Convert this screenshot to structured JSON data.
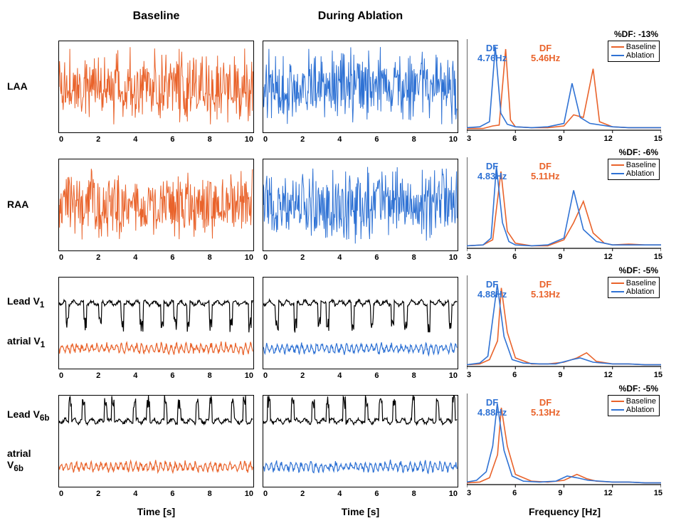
{
  "headers": {
    "col1": "Baseline",
    "col2": "During Ablation"
  },
  "axis_labels": {
    "time": "Time [s]",
    "freq": "Frequency [Hz]"
  },
  "colors": {
    "baseline": "#e9632b",
    "ablation": "#2f72d4",
    "ecg": "#000000",
    "box": "#000000",
    "bg": "#ffffff"
  },
  "legend": {
    "baseline": "Baseline",
    "ablation": "Ablation"
  },
  "time_panel": {
    "xlim": [
      0,
      10
    ],
    "xticks": [
      0,
      2,
      4,
      6,
      8,
      10
    ]
  },
  "freq_panel": {
    "xlim": [
      3,
      15
    ],
    "xticks": [
      3,
      6,
      9,
      12,
      15
    ]
  },
  "rows": [
    {
      "row_label": "LAA",
      "type": "egm",
      "pct_df": "%DF: -13%",
      "df_ablation": {
        "label": "DF",
        "hz": "4.76Hz"
      },
      "df_baseline": {
        "label": "DF",
        "hz": "5.46Hz"
      },
      "spectrum": {
        "baseline": [
          [
            3,
            2
          ],
          [
            4,
            2
          ],
          [
            4.6,
            5
          ],
          [
            5.0,
            6
          ],
          [
            5.4,
            95
          ],
          [
            5.7,
            12
          ],
          [
            6,
            4
          ],
          [
            7,
            3
          ],
          [
            8,
            3
          ],
          [
            9,
            5
          ],
          [
            9.6,
            18
          ],
          [
            10.2,
            15
          ],
          [
            10.8,
            72
          ],
          [
            11.2,
            10
          ],
          [
            12,
            4
          ],
          [
            13,
            3
          ],
          [
            14,
            3
          ],
          [
            15,
            3
          ]
        ],
        "ablation": [
          [
            3,
            3
          ],
          [
            3.8,
            4
          ],
          [
            4.4,
            10
          ],
          [
            4.76,
            98
          ],
          [
            5.1,
            20
          ],
          [
            5.5,
            7
          ],
          [
            6,
            4
          ],
          [
            7,
            3
          ],
          [
            8,
            4
          ],
          [
            9,
            8
          ],
          [
            9.5,
            55
          ],
          [
            10,
            15
          ],
          [
            10.6,
            8
          ],
          [
            12,
            4
          ],
          [
            13,
            3
          ],
          [
            14,
            3
          ],
          [
            15,
            3
          ]
        ]
      }
    },
    {
      "row_label": "RAA",
      "type": "egm",
      "pct_df": "%DF: -6%",
      "df_ablation": {
        "label": "DF",
        "hz": "4.83Hz"
      },
      "df_baseline": {
        "label": "DF",
        "hz": "5.11Hz"
      },
      "spectrum": {
        "baseline": [
          [
            3,
            3
          ],
          [
            4,
            4
          ],
          [
            4.6,
            10
          ],
          [
            5.11,
            90
          ],
          [
            5.5,
            20
          ],
          [
            6,
            6
          ],
          [
            7,
            3
          ],
          [
            8,
            3
          ],
          [
            9,
            10
          ],
          [
            9.6,
            30
          ],
          [
            10.2,
            55
          ],
          [
            10.8,
            18
          ],
          [
            11.5,
            6
          ],
          [
            12,
            4
          ],
          [
            13,
            5
          ],
          [
            14,
            4
          ],
          [
            15,
            4
          ]
        ],
        "ablation": [
          [
            3,
            3
          ],
          [
            4,
            4
          ],
          [
            4.5,
            12
          ],
          [
            4.83,
            96
          ],
          [
            5.2,
            30
          ],
          [
            5.6,
            8
          ],
          [
            6,
            4
          ],
          [
            7,
            3
          ],
          [
            8,
            4
          ],
          [
            9,
            12
          ],
          [
            9.6,
            68
          ],
          [
            10.2,
            22
          ],
          [
            11,
            8
          ],
          [
            12,
            4
          ],
          [
            13,
            4
          ],
          [
            14,
            4
          ],
          [
            15,
            4
          ]
        ]
      }
    },
    {
      "row_label_top": "Lead V<sub>1</sub>",
      "row_label_bottom": "atrial V<sub>1</sub>",
      "type": "ecg",
      "pct_df": "%DF: -5%",
      "df_ablation": {
        "label": "DF",
        "hz": "4.88Hz"
      },
      "df_baseline": {
        "label": "DF",
        "hz": "5.13Hz"
      },
      "spectrum": {
        "baseline": [
          [
            3,
            2
          ],
          [
            3.8,
            3
          ],
          [
            4.4,
            8
          ],
          [
            4.9,
            30
          ],
          [
            5.13,
            92
          ],
          [
            5.5,
            40
          ],
          [
            6,
            10
          ],
          [
            7,
            3
          ],
          [
            8,
            3
          ],
          [
            9,
            5
          ],
          [
            9.8,
            10
          ],
          [
            10.4,
            16
          ],
          [
            11,
            6
          ],
          [
            12,
            3
          ],
          [
            13,
            3
          ],
          [
            14,
            2
          ],
          [
            15,
            2
          ]
        ],
        "ablation": [
          [
            3,
            2
          ],
          [
            3.8,
            4
          ],
          [
            4.3,
            12
          ],
          [
            4.88,
            96
          ],
          [
            5.3,
            35
          ],
          [
            5.8,
            8
          ],
          [
            6.5,
            4
          ],
          [
            7.5,
            3
          ],
          [
            8.5,
            3
          ],
          [
            9.5,
            8
          ],
          [
            10,
            10
          ],
          [
            10.8,
            5
          ],
          [
            12,
            3
          ],
          [
            13,
            3
          ],
          [
            14,
            2
          ],
          [
            15,
            2
          ]
        ]
      }
    },
    {
      "row_label_top": "Lead V<sub>6b</sub>",
      "row_label_bottom": "atrial V<sub>6b</sub>",
      "type": "ecg",
      "pct_df": "%DF: -5%",
      "df_ablation": {
        "label": "DF",
        "hz": "4.88Hz"
      },
      "df_baseline": {
        "label": "DF",
        "hz": "5.13Hz"
      },
      "spectrum": {
        "baseline": [
          [
            3,
            2
          ],
          [
            3.8,
            3
          ],
          [
            4.4,
            8
          ],
          [
            4.9,
            35
          ],
          [
            5.13,
            90
          ],
          [
            5.5,
            45
          ],
          [
            6,
            12
          ],
          [
            7,
            4
          ],
          [
            8,
            3
          ],
          [
            9,
            5
          ],
          [
            9.8,
            12
          ],
          [
            10.4,
            7
          ],
          [
            11,
            4
          ],
          [
            12,
            3
          ],
          [
            13,
            3
          ],
          [
            14,
            2
          ],
          [
            15,
            2
          ]
        ],
        "ablation": [
          [
            3,
            3
          ],
          [
            3.6,
            5
          ],
          [
            4.2,
            15
          ],
          [
            4.6,
            45
          ],
          [
            4.88,
            95
          ],
          [
            5.3,
            40
          ],
          [
            5.8,
            10
          ],
          [
            6.5,
            4
          ],
          [
            7.5,
            3
          ],
          [
            8.5,
            4
          ],
          [
            9.2,
            10
          ],
          [
            9.8,
            8
          ],
          [
            10.5,
            5
          ],
          [
            12,
            3
          ],
          [
            13,
            3
          ],
          [
            14,
            2
          ],
          [
            15,
            2
          ]
        ]
      }
    }
  ]
}
